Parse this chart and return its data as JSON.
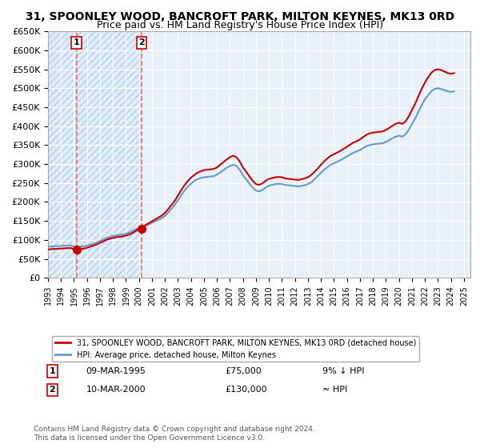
{
  "title": "31, SPOONLEY WOOD, BANCROFT PARK, MILTON KEYNES, MK13 0RD",
  "subtitle": "Price paid vs. HM Land Registry's House Price Index (HPI)",
  "legend_line1": "31, SPOONLEY WOOD, BANCROFT PARK, MILTON KEYNES, MK13 0RD (detached house)",
  "legend_line2": "HPI: Average price, detached house, Milton Keynes",
  "footnote": "Contains HM Land Registry data © Crown copyright and database right 2024.\nThis data is licensed under the Open Government Licence v3.0.",
  "sale1_date": 1995.19,
  "sale1_price": 75000,
  "sale1_label": "1",
  "sale1_text": "09-MAR-1995",
  "sale1_amount": "£75,000",
  "sale1_hpi": "9% ↓ HPI",
  "sale2_date": 2000.19,
  "sale2_price": 130000,
  "sale2_label": "2",
  "sale2_text": "10-MAR-2000",
  "sale2_amount": "£130,000",
  "sale2_hpi": "≈ HPI",
  "ylim_min": 0,
  "ylim_max": 650000,
  "xlim_min": 1993,
  "xlim_max": 2025.5,
  "hpi_color": "#6699cc",
  "price_color": "#cc0000",
  "vline_color": "#ff6666",
  "bg_hatch_color": "#ccddee",
  "bg_plain_color": "#e8f0f8",
  "grid_color": "#ffffff",
  "title_fontsize": 10.5,
  "subtitle_fontsize": 9.5,
  "hpi_data_x": [
    1993,
    1993.25,
    1993.5,
    1993.75,
    1994,
    1994.25,
    1994.5,
    1994.75,
    1995,
    1995.25,
    1995.5,
    1995.75,
    1996,
    1996.25,
    1996.5,
    1996.75,
    1997,
    1997.25,
    1997.5,
    1997.75,
    1998,
    1998.25,
    1998.5,
    1998.75,
    1999,
    1999.25,
    1999.5,
    1999.75,
    2000,
    2000.25,
    2000.5,
    2000.75,
    2001,
    2001.25,
    2001.5,
    2001.75,
    2002,
    2002.25,
    2002.5,
    2002.75,
    2003,
    2003.25,
    2003.5,
    2003.75,
    2004,
    2004.25,
    2004.5,
    2004.75,
    2005,
    2005.25,
    2005.5,
    2005.75,
    2006,
    2006.25,
    2006.5,
    2006.75,
    2007,
    2007.25,
    2007.5,
    2007.75,
    2008,
    2008.25,
    2008.5,
    2008.75,
    2009,
    2009.25,
    2009.5,
    2009.75,
    2010,
    2010.25,
    2010.5,
    2010.75,
    2011,
    2011.25,
    2011.5,
    2011.75,
    2012,
    2012.25,
    2012.5,
    2012.75,
    2013,
    2013.25,
    2013.5,
    2013.75,
    2014,
    2014.25,
    2014.5,
    2014.75,
    2015,
    2015.25,
    2015.5,
    2015.75,
    2016,
    2016.25,
    2016.5,
    2016.75,
    2017,
    2017.25,
    2017.5,
    2017.75,
    2018,
    2018.25,
    2018.5,
    2018.75,
    2019,
    2019.25,
    2019.5,
    2019.75,
    2020,
    2020.25,
    2020.5,
    2020.75,
    2021,
    2021.25,
    2021.5,
    2021.75,
    2022,
    2022.25,
    2022.5,
    2022.75,
    2023,
    2023.25,
    2023.5,
    2023.75,
    2024,
    2024.25
  ],
  "hpi_data_y": [
    82000,
    82500,
    83000,
    83500,
    84000,
    84500,
    85000,
    85500,
    82000,
    81000,
    82000,
    83000,
    85000,
    87000,
    90000,
    93000,
    97000,
    101000,
    105000,
    108000,
    110000,
    112000,
    113000,
    114000,
    116000,
    119000,
    123000,
    128000,
    130000,
    133000,
    137000,
    141000,
    145000,
    149000,
    153000,
    157000,
    163000,
    172000,
    182000,
    192000,
    205000,
    218000,
    230000,
    240000,
    248000,
    255000,
    260000,
    263000,
    265000,
    266000,
    267000,
    268000,
    272000,
    278000,
    284000,
    290000,
    295000,
    298000,
    295000,
    285000,
    270000,
    260000,
    248000,
    238000,
    230000,
    228000,
    232000,
    238000,
    243000,
    245000,
    247000,
    248000,
    247000,
    245000,
    244000,
    243000,
    242000,
    241000,
    242000,
    244000,
    247000,
    252000,
    260000,
    268000,
    277000,
    285000,
    292000,
    298000,
    302000,
    306000,
    310000,
    315000,
    320000,
    325000,
    330000,
    333000,
    337000,
    342000,
    347000,
    350000,
    352000,
    353000,
    354000,
    355000,
    358000,
    363000,
    368000,
    372000,
    375000,
    372000,
    378000,
    390000,
    405000,
    420000,
    438000,
    455000,
    470000,
    482000,
    492000,
    498000,
    500000,
    498000,
    495000,
    492000,
    490000,
    492000
  ],
  "price_data_x": [
    1993,
    1993.25,
    1993.5,
    1993.75,
    1994,
    1994.25,
    1994.5,
    1994.75,
    1995,
    1995.25,
    1995.5,
    1995.75,
    1996,
    1996.25,
    1996.5,
    1996.75,
    1997,
    1997.25,
    1997.5,
    1997.75,
    1998,
    1998.25,
    1998.5,
    1998.75,
    1999,
    1999.25,
    1999.5,
    1999.75,
    2000,
    2000.25,
    2000.5,
    2000.75,
    2001,
    2001.25,
    2001.5,
    2001.75,
    2002,
    2002.25,
    2002.5,
    2002.75,
    2003,
    2003.25,
    2003.5,
    2003.75,
    2004,
    2004.25,
    2004.5,
    2004.75,
    2005,
    2005.25,
    2005.5,
    2005.75,
    2006,
    2006.25,
    2006.5,
    2006.75,
    2007,
    2007.25,
    2007.5,
    2007.75,
    2008,
    2008.25,
    2008.5,
    2008.75,
    2009,
    2009.25,
    2009.5,
    2009.75,
    2010,
    2010.25,
    2010.5,
    2010.75,
    2011,
    2011.25,
    2011.5,
    2011.75,
    2012,
    2012.25,
    2012.5,
    2012.75,
    2013,
    2013.25,
    2013.5,
    2013.75,
    2014,
    2014.25,
    2014.5,
    2014.75,
    2015,
    2015.25,
    2015.5,
    2015.75,
    2016,
    2016.25,
    2016.5,
    2016.75,
    2017,
    2017.25,
    2017.5,
    2017.75,
    2018,
    2018.25,
    2018.5,
    2018.75,
    2019,
    2019.25,
    2019.5,
    2019.75,
    2020,
    2020.25,
    2020.5,
    2020.75,
    2021,
    2021.25,
    2021.5,
    2021.75,
    2022,
    2022.25,
    2022.5,
    2022.75,
    2023,
    2023.25,
    2023.5,
    2023.75,
    2024,
    2024.25
  ],
  "price_data_y": [
    75000,
    75500,
    76000,
    76500,
    77000,
    77500,
    78000,
    78500,
    75000,
    75200,
    76000,
    77000,
    79000,
    82000,
    85000,
    88000,
    92000,
    96000,
    100000,
    103000,
    105000,
    107000,
    108000,
    109000,
    111000,
    114000,
    118000,
    123000,
    130000,
    134000,
    139000,
    144000,
    149000,
    154000,
    159000,
    164000,
    171000,
    181000,
    192000,
    203000,
    217000,
    231000,
    244000,
    255000,
    264000,
    271000,
    277000,
    281000,
    284000,
    285000,
    286000,
    287000,
    291000,
    298000,
    305000,
    312000,
    318000,
    322000,
    318000,
    307000,
    291000,
    280000,
    267000,
    256000,
    247000,
    245000,
    249000,
    256000,
    261000,
    263000,
    265000,
    266000,
    265000,
    262000,
    261000,
    260000,
    259000,
    258000,
    260000,
    262000,
    265000,
    271000,
    279000,
    288000,
    298000,
    307000,
    315000,
    322000,
    326000,
    330000,
    335000,
    340000,
    346000,
    351000,
    357000,
    360000,
    365000,
    371000,
    377000,
    381000,
    383000,
    384000,
    385000,
    386000,
    390000,
    395000,
    401000,
    406000,
    409000,
    406000,
    412000,
    425000,
    442000,
    459000,
    479000,
    498000,
    515000,
    529000,
    541000,
    548000,
    550000,
    548000,
    544000,
    540000,
    538000,
    540000
  ]
}
